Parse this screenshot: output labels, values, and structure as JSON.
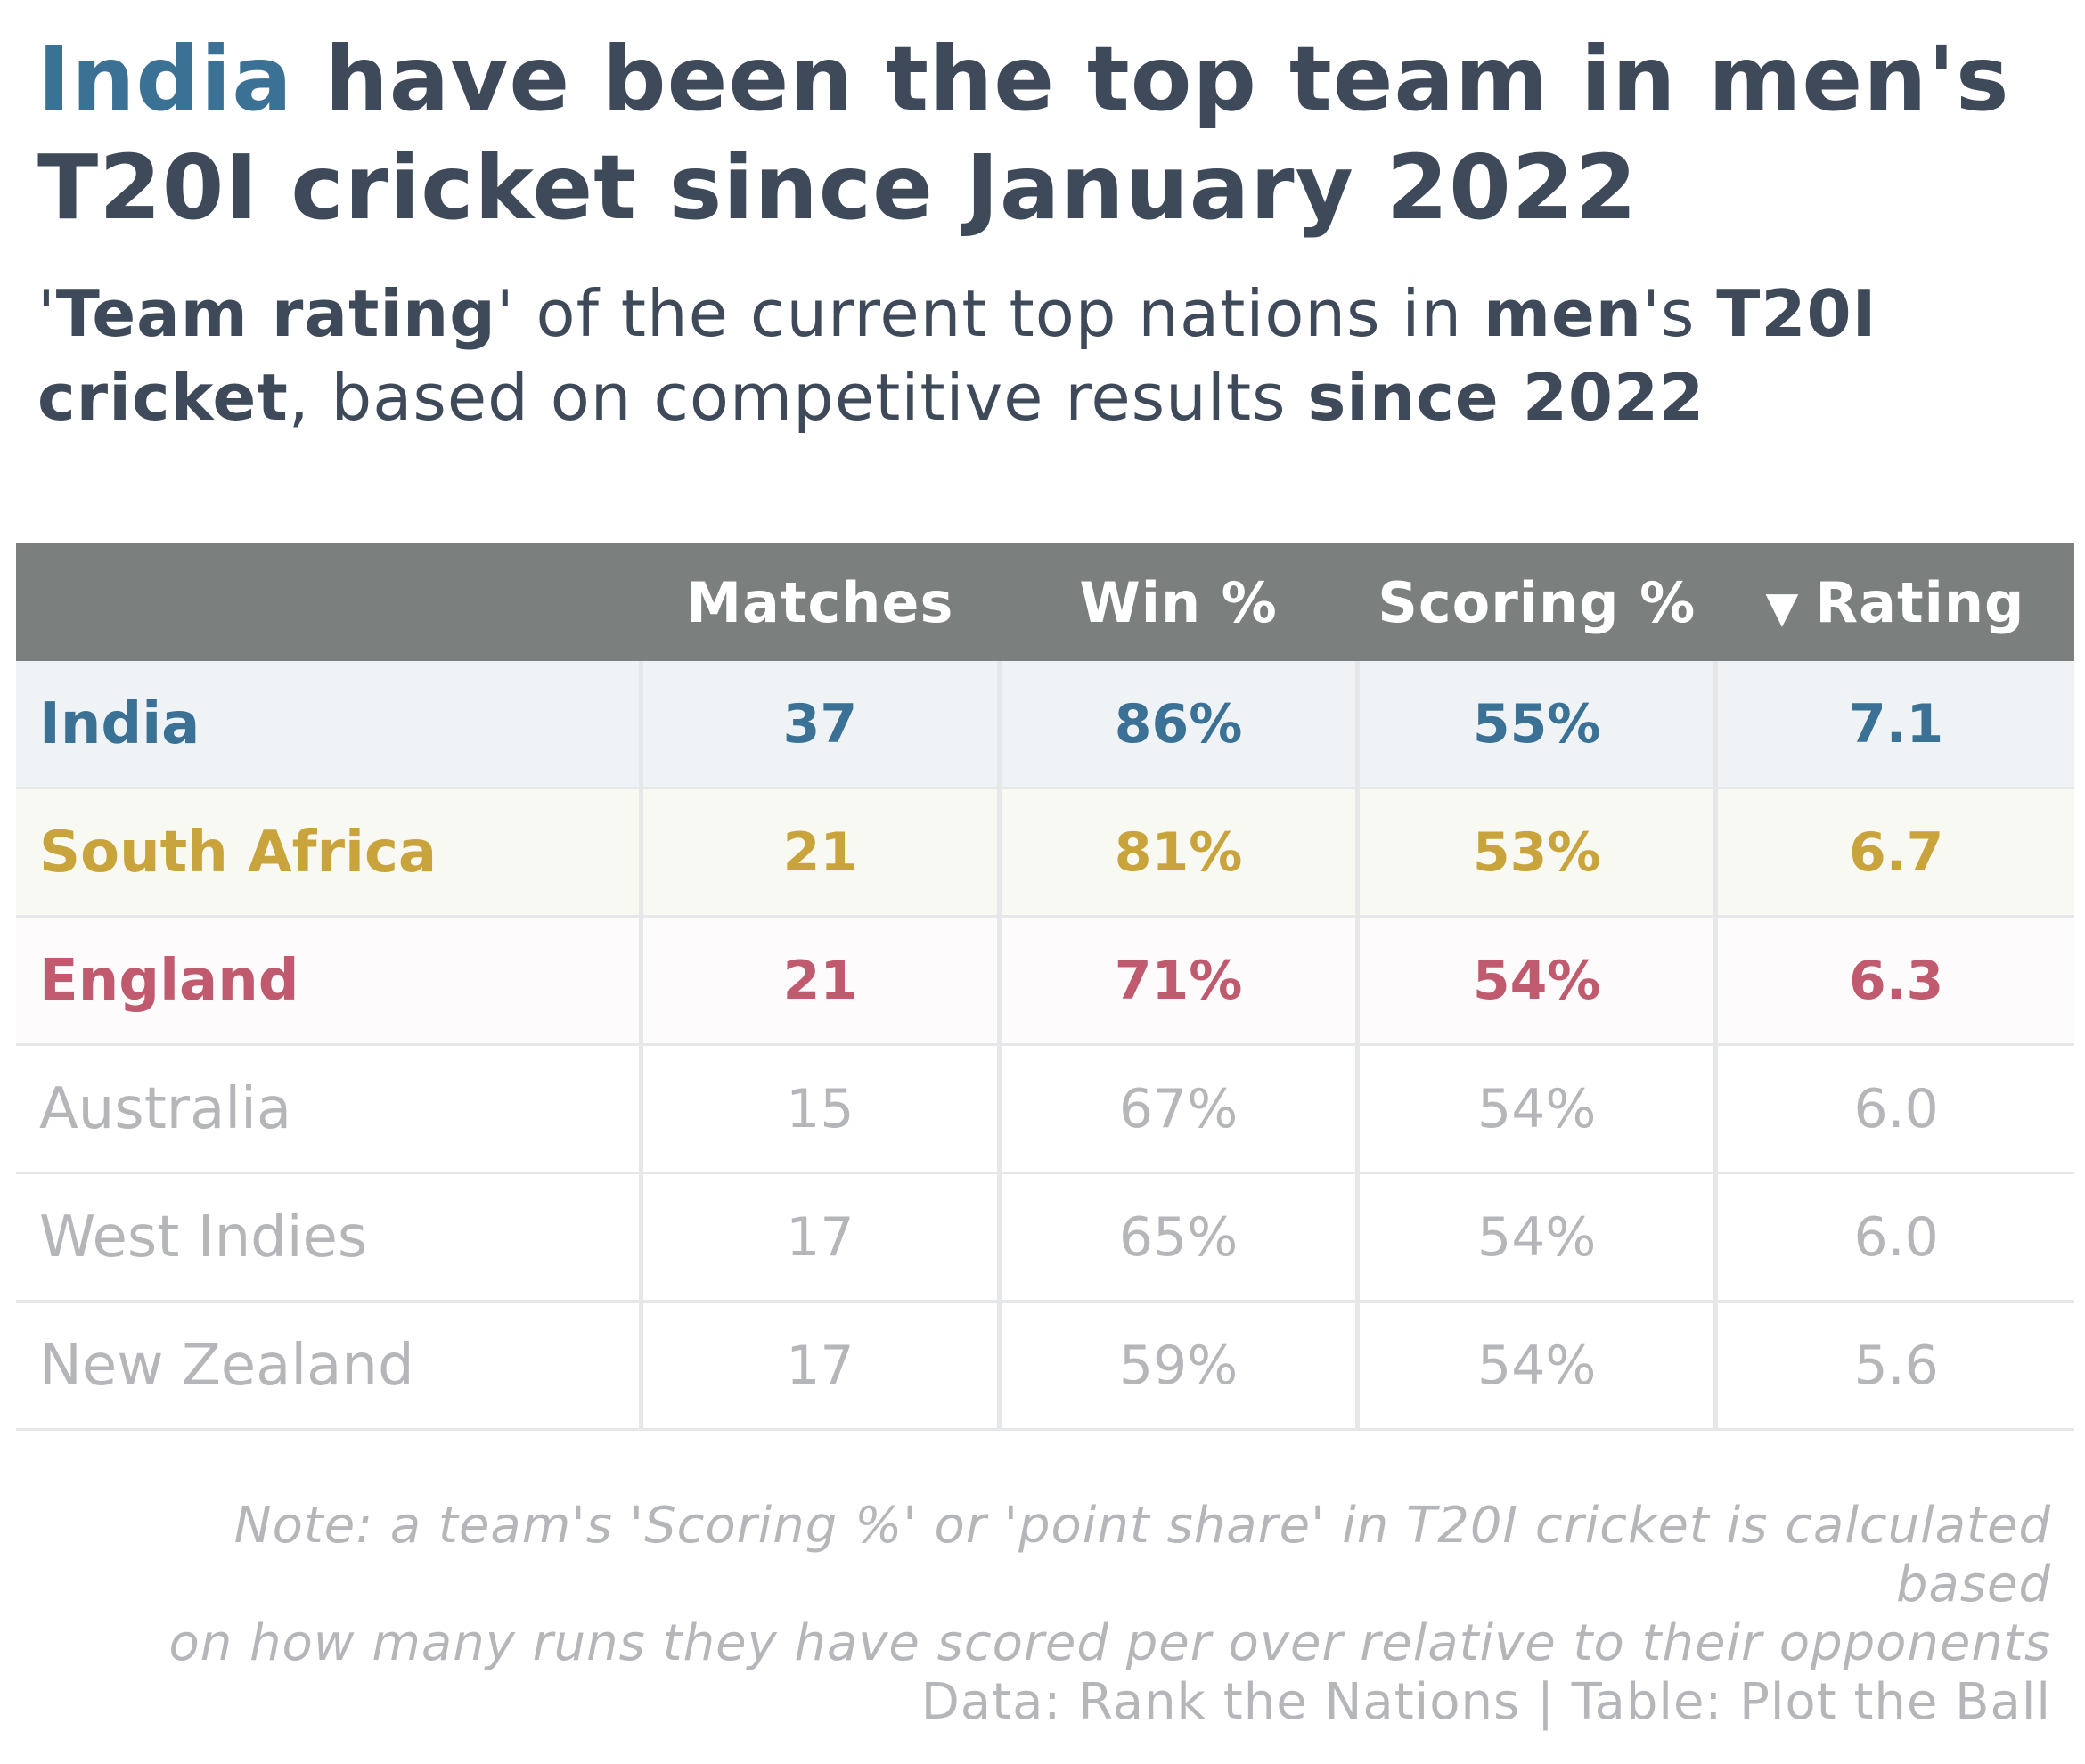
{
  "title": {
    "highlight": "India",
    "rest": " have been the top team in men's T20I cricket since January 2022"
  },
  "subtitle": {
    "p1": "'",
    "b1": "Team rating",
    "p2": "' of the current top nations in ",
    "b2": "men",
    "p3": "'s ",
    "b3": "T20I cricket",
    "p4": ", based on competitive results ",
    "b4": "since 2022"
  },
  "colors": {
    "India": "#3a7195",
    "South Africa": "#c9a43c",
    "England": "#c05a6e",
    "muted": "#b4b6ba",
    "header_bg": "#7b7f7d"
  },
  "chart_data": {
    "type": "table",
    "title": "India have been the top team in men's T20I cricket since January 2022",
    "sort_icon": "▼",
    "columns": [
      "",
      "Matches",
      "Win %",
      "Scoring %",
      "Rating"
    ],
    "rows": [
      {
        "team": "India",
        "matches": "37",
        "win": "86%",
        "scoring": "55%",
        "rating": "7.1",
        "highlight": true,
        "bg": "#eff3f6"
      },
      {
        "team": "South Africa",
        "matches": "21",
        "win": "81%",
        "scoring": "53%",
        "rating": "6.7",
        "highlight": true,
        "bg": "#f9f9f3"
      },
      {
        "team": "England",
        "matches": "21",
        "win": "71%",
        "scoring": "54%",
        "rating": "6.3",
        "highlight": true,
        "bg": "#fdfbfc"
      },
      {
        "team": "Australia",
        "matches": "15",
        "win": "67%",
        "scoring": "54%",
        "rating": "6.0",
        "highlight": false,
        "bg": "#ffffff"
      },
      {
        "team": "West Indies",
        "matches": "17",
        "win": "65%",
        "scoring": "54%",
        "rating": "6.0",
        "highlight": false,
        "bg": "#ffffff"
      },
      {
        "team": "New Zealand",
        "matches": "17",
        "win": "59%",
        "scoring": "54%",
        "rating": "5.6",
        "highlight": false,
        "bg": "#ffffff"
      }
    ]
  },
  "note": {
    "line1": "Note: a team's 'Scoring %' or 'point share' in T20I cricket is calculated based",
    "line2": "on how many runs they have scored per over relative to their opponents"
  },
  "source": "Data: Rank the Nations | Table: Plot the Ball"
}
